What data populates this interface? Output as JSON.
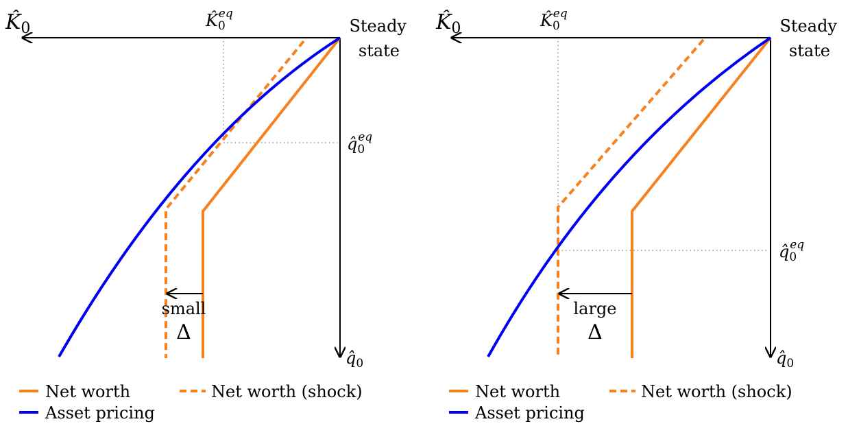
{
  "axes": {
    "k0": "K̂",
    "k0_sub": "0",
    "k0eq": "K̂",
    "k0eq_sub": "0",
    "k0eq_sup": "eq",
    "q0": "q̂",
    "q0_sub": "0",
    "q0eq": "q̂",
    "q0eq_sub": "0",
    "q0eq_sup": "eq",
    "steady_line1": "Steady",
    "steady_line2": "state"
  },
  "panels": [
    {
      "delta_word": "small",
      "delta_symbol": "Δ"
    },
    {
      "delta_word": "large",
      "delta_symbol": "Δ"
    }
  ],
  "legend": {
    "net_worth": "Net worth",
    "net_worth_shock": "Net worth (shock)",
    "asset_pricing": "Asset pricing"
  },
  "colors": {
    "net_worth": "#F5821F",
    "asset_pricing": "#0000F0"
  }
}
